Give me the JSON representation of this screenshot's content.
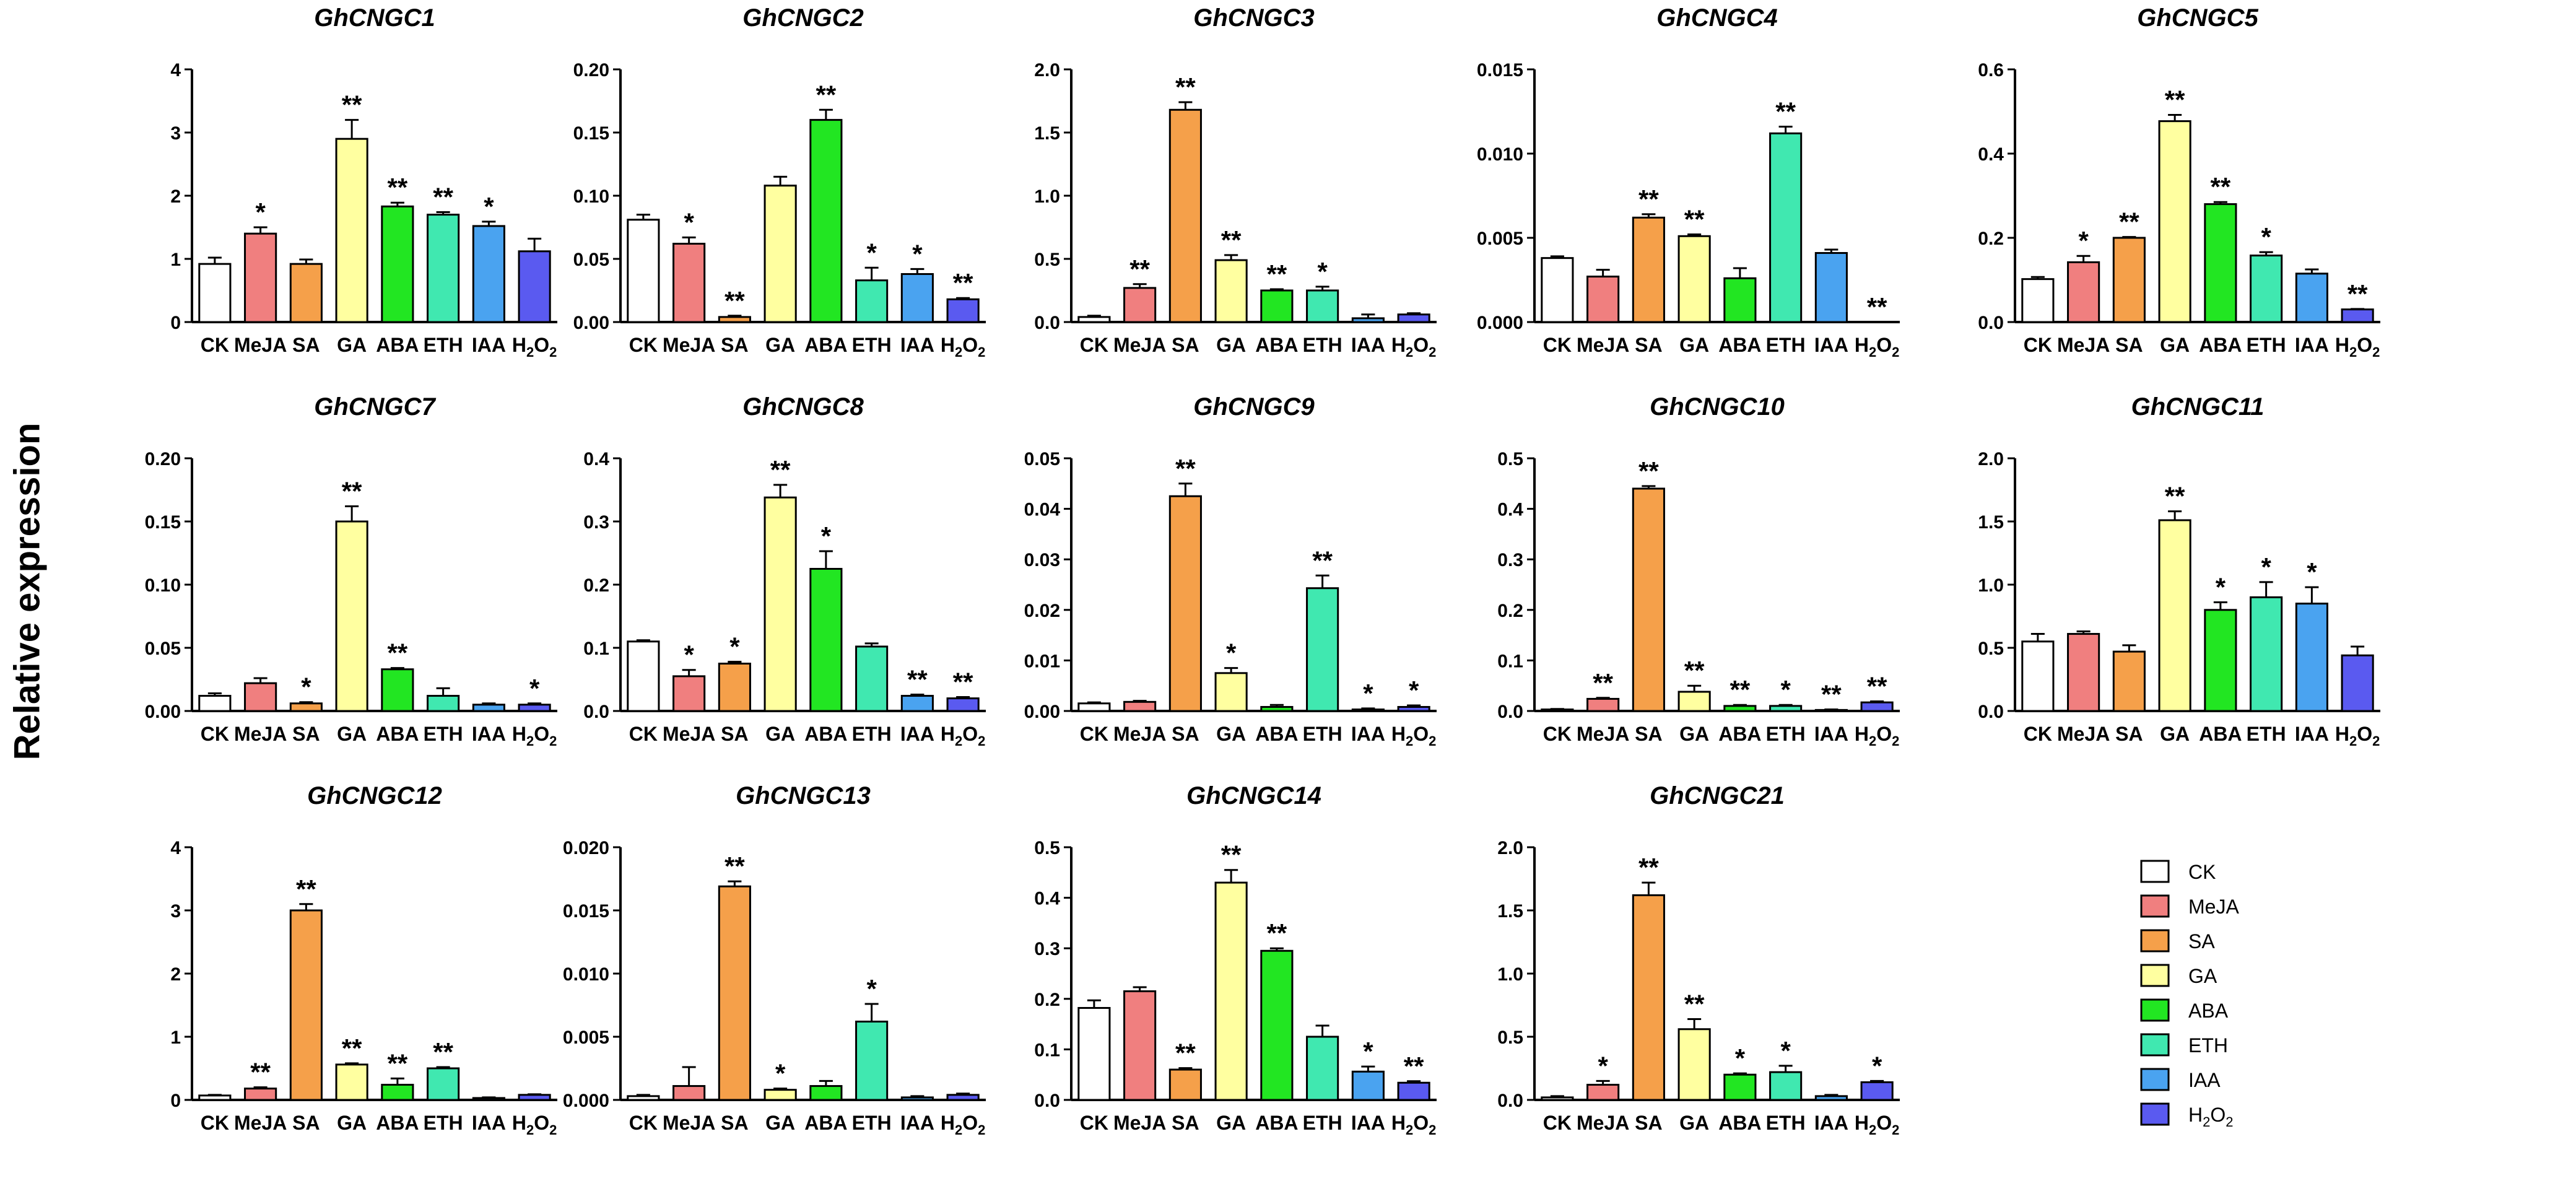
{
  "y_axis_label": "Relative expression",
  "treatments": [
    "CK",
    "MeJA",
    "SA",
    "GA",
    "ABA",
    "ETH",
    "IAA",
    "H2O2"
  ],
  "legend": {
    "items": [
      {
        "label": "CK",
        "color": "#ffffff"
      },
      {
        "label": "MeJA",
        "color": "#f07f7f"
      },
      {
        "label": "SA",
        "color": "#f5a04a"
      },
      {
        "label": "GA",
        "color": "#ffffa0"
      },
      {
        "label": "ABA",
        "color": "#22e622"
      },
      {
        "label": "ETH",
        "color": "#40e8b0"
      },
      {
        "label": "IAA",
        "color": "#4aa3f0"
      },
      {
        "label": "H2O2",
        "color": "#5a5af0"
      }
    ]
  },
  "chart_data": [
    {
      "type": "bar",
      "title": "GhCNGC1",
      "categories": [
        "CK",
        "MeJA",
        "SA",
        "GA",
        "ABA",
        "ETH",
        "IAA",
        "H2O2"
      ],
      "values": [
        0.92,
        1.4,
        0.92,
        2.9,
        1.83,
        1.7,
        1.52,
        1.12
      ],
      "errors": [
        0.1,
        0.1,
        0.07,
        0.3,
        0.06,
        0.04,
        0.07,
        0.2
      ],
      "significance": [
        "",
        "*",
        "",
        "**",
        "**",
        "**",
        "*",
        ""
      ],
      "ylim": [
        0,
        4
      ],
      "ticks": [
        "0",
        "1",
        "2",
        "3",
        "4"
      ]
    },
    {
      "type": "bar",
      "title": "GhCNGC2",
      "categories": [
        "CK",
        "MeJA",
        "SA",
        "GA",
        "ABA",
        "ETH",
        "IAA",
        "H2O2"
      ],
      "values": [
        0.081,
        0.062,
        0.004,
        0.108,
        0.16,
        0.033,
        0.038,
        0.018
      ],
      "errors": [
        0.004,
        0.005,
        0.001,
        0.007,
        0.008,
        0.01,
        0.004,
        0.001
      ],
      "significance": [
        "",
        "*",
        "**",
        "",
        "**",
        "*",
        "*",
        "**"
      ],
      "ylim": [
        0,
        0.2
      ],
      "ticks": [
        "0.00",
        "0.05",
        "0.10",
        "0.15",
        "0.20"
      ]
    },
    {
      "type": "bar",
      "title": "GhCNGC3",
      "categories": [
        "CK",
        "MeJA",
        "SA",
        "GA",
        "ABA",
        "ETH",
        "IAA",
        "H2O2"
      ],
      "values": [
        0.04,
        0.27,
        1.68,
        0.49,
        0.25,
        0.25,
        0.03,
        0.06
      ],
      "errors": [
        0.01,
        0.03,
        0.06,
        0.04,
        0.01,
        0.03,
        0.03,
        0.01
      ],
      "significance": [
        "",
        "**",
        "**",
        "**",
        "**",
        "*",
        "",
        ""
      ],
      "ylim": [
        0,
        2
      ],
      "ticks": [
        "0.0",
        "0.5",
        "1.0",
        "1.5",
        "2.0"
      ]
    },
    {
      "type": "bar",
      "title": "GhCNGC4",
      "categories": [
        "CK",
        "MeJA",
        "SA",
        "GA",
        "ABA",
        "ETH",
        "IAA",
        "H2O2"
      ],
      "values": [
        0.0038,
        0.0027,
        0.0062,
        0.0051,
        0.0026,
        0.0112,
        0.0041,
        0
      ],
      "errors": [
        0.0001,
        0.0004,
        0.0002,
        0.0001,
        0.0006,
        0.0004,
        0.0002,
        0
      ],
      "significance": [
        "",
        "",
        "**",
        "**",
        "",
        "**",
        "",
        "**"
      ],
      "ylim": [
        0,
        0.015
      ],
      "ticks": [
        "0.000",
        "0.005",
        "0.010",
        "0.015"
      ]
    },
    {
      "type": "bar",
      "title": "GhCNGC5",
      "categories": [
        "CK",
        "MeJA",
        "SA",
        "GA",
        "ABA",
        "ETH",
        "IAA",
        "H2O2"
      ],
      "values": [
        0.102,
        0.142,
        0.2,
        0.477,
        0.28,
        0.158,
        0.115,
        0.03
      ],
      "errors": [
        0.005,
        0.015,
        0.002,
        0.015,
        0.005,
        0.008,
        0.01,
        0.001
      ],
      "significance": [
        "",
        "*",
        "**",
        "**",
        "**",
        "*",
        "",
        "**"
      ],
      "ylim": [
        0,
        0.6
      ],
      "ticks": [
        "0.0",
        "0.2",
        "0.4",
        "0.6"
      ]
    },
    {
      "type": "bar",
      "title": "GhCNGC7",
      "categories": [
        "CK",
        "MeJA",
        "SA",
        "GA",
        "ABA",
        "ETH",
        "IAA",
        "H2O2"
      ],
      "values": [
        0.012,
        0.022,
        0.006,
        0.15,
        0.033,
        0.012,
        0.005,
        0.005
      ],
      "errors": [
        0.002,
        0.004,
        0.001,
        0.012,
        0.001,
        0.006,
        0.001,
        0.001
      ],
      "significance": [
        "",
        "",
        "*",
        "**",
        "**",
        "",
        "",
        "*"
      ],
      "ylim": [
        0,
        0.2
      ],
      "ticks": [
        "0.00",
        "0.05",
        "0.10",
        "0.15",
        "0.20"
      ]
    },
    {
      "type": "bar",
      "title": "GhCNGC8",
      "categories": [
        "CK",
        "MeJA",
        "SA",
        "GA",
        "ABA",
        "ETH",
        "IAA",
        "H2O2"
      ],
      "values": [
        0.11,
        0.055,
        0.075,
        0.338,
        0.225,
        0.102,
        0.024,
        0.02
      ],
      "errors": [
        0.002,
        0.01,
        0.003,
        0.02,
        0.028,
        0.005,
        0.002,
        0.002
      ],
      "significance": [
        "",
        "*",
        "*",
        "**",
        "*",
        "",
        "**",
        "**"
      ],
      "ylim": [
        0,
        0.4
      ],
      "ticks": [
        "0.0",
        "0.1",
        "0.2",
        "0.3",
        "0.4"
      ]
    },
    {
      "type": "bar",
      "title": "GhCNGC9",
      "categories": [
        "CK",
        "MeJA",
        "SA",
        "GA",
        "ABA",
        "ETH",
        "IAA",
        "H2O2"
      ],
      "values": [
        0.0015,
        0.0018,
        0.0425,
        0.0075,
        0.0008,
        0.0243,
        0.0003,
        0.0008
      ],
      "errors": [
        0.0002,
        0.0002,
        0.0025,
        0.001,
        0.0004,
        0.0025,
        0.0002,
        0.0003
      ],
      "significance": [
        "",
        "",
        "**",
        "*",
        "",
        "**",
        "*",
        "*"
      ],
      "ylim": [
        0,
        0.05
      ],
      "ticks": [
        "0.00",
        "0.01",
        "0.02",
        "0.03",
        "0.04",
        "0.05"
      ]
    },
    {
      "type": "bar",
      "title": "GhCNGC10",
      "categories": [
        "CK",
        "MeJA",
        "SA",
        "GA",
        "ABA",
        "ETH",
        "IAA",
        "H2O2"
      ],
      "values": [
        0.003,
        0.024,
        0.44,
        0.038,
        0.01,
        0.01,
        0.002,
        0.017
      ],
      "errors": [
        0.001,
        0.002,
        0.005,
        0.012,
        0.002,
        0.002,
        0.001,
        0.002
      ],
      "significance": [
        "",
        "**",
        "**",
        "**",
        "**",
        "*",
        "**",
        "**"
      ],
      "ylim": [
        0,
        0.5
      ],
      "ticks": [
        "0.0",
        "0.1",
        "0.2",
        "0.3",
        "0.4",
        "0.5"
      ]
    },
    {
      "type": "bar",
      "title": "GhCNGC11",
      "categories": [
        "CK",
        "MeJA",
        "SA",
        "GA",
        "ABA",
        "ETH",
        "IAA",
        "H2O2"
      ],
      "values": [
        0.55,
        0.61,
        0.47,
        1.51,
        0.8,
        0.9,
        0.85,
        0.44
      ],
      "errors": [
        0.06,
        0.02,
        0.05,
        0.07,
        0.06,
        0.12,
        0.13,
        0.07
      ],
      "significance": [
        "",
        "",
        "",
        "**",
        "*",
        "*",
        "*",
        ""
      ],
      "ylim": [
        0,
        2
      ],
      "ticks": [
        "0.0",
        "0.5",
        "1.0",
        "1.5",
        "2.0"
      ]
    },
    {
      "type": "bar",
      "title": "GhCNGC12",
      "categories": [
        "CK",
        "MeJA",
        "SA",
        "GA",
        "ABA",
        "ETH",
        "IAA",
        "H2O2"
      ],
      "values": [
        0.07,
        0.18,
        3.0,
        0.56,
        0.24,
        0.5,
        0.03,
        0.08
      ],
      "errors": [
        0.01,
        0.02,
        0.1,
        0.02,
        0.1,
        0.02,
        0.01,
        0.01
      ],
      "significance": [
        "",
        "**",
        "**",
        "**",
        "**",
        "**",
        "",
        ""
      ],
      "ylim": [
        0,
        4
      ],
      "ticks": [
        "0",
        "1",
        "2",
        "3",
        "4"
      ]
    },
    {
      "type": "bar",
      "title": "GhCNGC13",
      "categories": [
        "CK",
        "MeJA",
        "SA",
        "GA",
        "ABA",
        "ETH",
        "IAA",
        "H2O2"
      ],
      "values": [
        0.0003,
        0.0011,
        0.0169,
        0.0008,
        0.0011,
        0.0062,
        0.0002,
        0.0004
      ],
      "errors": [
        0.0001,
        0.0015,
        0.0004,
        0.0001,
        0.0004,
        0.0014,
        0.0001,
        0.0001
      ],
      "significance": [
        "",
        "",
        "**",
        "*",
        "",
        "*",
        "",
        ""
      ],
      "ylim": [
        0,
        0.02
      ],
      "ticks": [
        "0.000",
        "0.005",
        "0.010",
        "0.015",
        "0.020"
      ]
    },
    {
      "type": "bar",
      "title": "GhCNGC14",
      "categories": [
        "CK",
        "MeJA",
        "SA",
        "GA",
        "ABA",
        "ETH",
        "IAA",
        "H2O2"
      ],
      "values": [
        0.182,
        0.215,
        0.06,
        0.43,
        0.295,
        0.125,
        0.056,
        0.034
      ],
      "errors": [
        0.015,
        0.008,
        0.003,
        0.025,
        0.005,
        0.022,
        0.01,
        0.003
      ],
      "significance": [
        "",
        "",
        "**",
        "**",
        "**",
        "",
        "*",
        "**"
      ],
      "ylim": [
        0,
        0.5
      ],
      "ticks": [
        "0.0",
        "0.1",
        "0.2",
        "0.3",
        "0.4",
        "0.5"
      ]
    },
    {
      "type": "bar",
      "title": "GhCNGC21",
      "categories": [
        "CK",
        "MeJA",
        "SA",
        "GA",
        "ABA",
        "ETH",
        "IAA",
        "H2O2"
      ],
      "values": [
        0.02,
        0.12,
        1.62,
        0.56,
        0.2,
        0.22,
        0.03,
        0.14
      ],
      "errors": [
        0.01,
        0.03,
        0.1,
        0.08,
        0.01,
        0.05,
        0.01,
        0.01
      ],
      "significance": [
        "",
        "*",
        "**",
        "**",
        "*",
        "*",
        "",
        "*"
      ],
      "ylim": [
        0,
        2
      ],
      "ticks": [
        "0.0",
        "0.5",
        "1.0",
        "1.5",
        "2.0"
      ]
    }
  ]
}
